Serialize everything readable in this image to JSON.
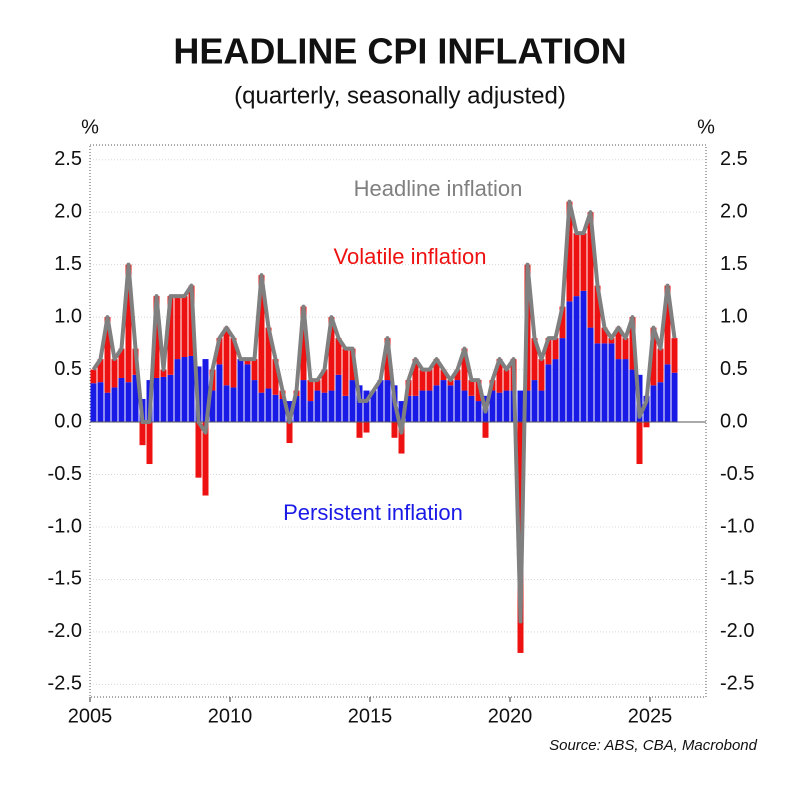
{
  "chart_data": {
    "type": "stacked-bar-line",
    "title": "HEADLINE CPI INFLATION",
    "subtitle": "(quarterly, seasonally adjusted)",
    "ylabel": "%",
    "source": "Source: ABS, CBA, Macrobond",
    "xlim": [
      2005,
      2027
    ],
    "ylim": [
      -2.62,
      2.64
    ],
    "xticks": [
      2005,
      2010,
      2015,
      2020,
      2025
    ],
    "yticks": [
      -2.5,
      {
        "value": -2,
        "label": "-2.0"
      },
      -1.5,
      {
        "value": -1,
        "label": "-1.0"
      },
      -0.5,
      {
        "value": 0,
        "label": "0.0"
      },
      0.5,
      {
        "value": 1,
        "label": "1.0"
      },
      1.5,
      {
        "value": 2,
        "label": "2.0"
      },
      2.5
    ],
    "grid": true,
    "x": [
      2005,
      2005.25,
      2005.5,
      2005.75,
      2006,
      2006.25,
      2006.5,
      2006.75,
      2007,
      2007.25,
      2007.5,
      2007.75,
      2008,
      2008.25,
      2008.5,
      2008.75,
      2009,
      2009.25,
      2009.5,
      2009.75,
      2010,
      2010.25,
      2010.5,
      2010.75,
      2011,
      2011.25,
      2011.5,
      2011.75,
      2012,
      2012.25,
      2012.5,
      2012.75,
      2013,
      2013.25,
      2013.5,
      2013.75,
      2014,
      2014.25,
      2014.5,
      2014.75,
      2015,
      2015.25,
      2015.5,
      2015.75,
      2016,
      2016.25,
      2016.5,
      2016.75,
      2017,
      2017.25,
      2017.5,
      2017.75,
      2018,
      2018.25,
      2018.5,
      2018.75,
      2019,
      2019.25,
      2019.5,
      2019.75,
      2020,
      2020.25,
      2020.5,
      2020.75,
      2021,
      2021.25,
      2021.5,
      2021.75,
      2022,
      2022.25,
      2022.5,
      2022.75,
      2023,
      2023.25,
      2023.5,
      2023.75,
      2024,
      2024.25,
      2024.5,
      2024.75,
      2025,
      2025.25,
      2025.5,
      2025.75
    ],
    "series": [
      {
        "name": "Persistent inflation",
        "color": "#1a1ae6",
        "kind": "bar",
        "values": [
          0.37,
          0.38,
          0.28,
          0.33,
          0.42,
          0.38,
          0.45,
          0.22,
          0.4,
          0.42,
          0.43,
          0.45,
          0.6,
          0.62,
          0.63,
          0.53,
          0.6,
          0.3,
          0.55,
          0.35,
          0.33,
          0.6,
          0.55,
          0.4,
          0.28,
          0.32,
          0.26,
          0.22,
          0.2,
          0.25,
          0.4,
          0.2,
          0.3,
          0.28,
          0.3,
          0.45,
          0.25,
          0.4,
          0.35,
          0.3,
          0.3,
          0.4,
          0.4,
          0.35,
          0.2,
          0.25,
          0.25,
          0.3,
          0.3,
          0.35,
          0.4,
          0.35,
          0.4,
          0.3,
          0.25,
          0.2,
          0.25,
          0.3,
          0.28,
          0.3,
          0.3,
          0.3,
          0.3,
          0.4,
          0.3,
          0.55,
          0.6,
          0.8,
          1.15,
          1.2,
          1.25,
          0.9,
          0.75,
          0.75,
          0.75,
          0.6,
          0.6,
          0.5,
          0.45,
          0.25,
          0.35,
          0.38,
          0.55,
          0.47
        ]
      },
      {
        "name": "Volatile inflation",
        "color": "#ee1111",
        "kind": "bar",
        "values": [
          0.13,
          0.22,
          0.72,
          0.27,
          0.28,
          1.12,
          0.25,
          -0.22,
          -0.4,
          0.78,
          0.07,
          0.75,
          0.6,
          0.58,
          0.67,
          -0.53,
          -0.7,
          0.2,
          0.25,
          0.55,
          0.47,
          0,
          0.05,
          0.2,
          1.12,
          0.58,
          0.34,
          0.08,
          -0.2,
          0.05,
          0.7,
          0.2,
          0.1,
          0.22,
          0.7,
          0.35,
          0.45,
          0.3,
          -0.15,
          -0.1,
          0,
          0,
          0.4,
          -0.15,
          -0.3,
          0.15,
          0.35,
          0.2,
          0.2,
          0.25,
          0.1,
          0.05,
          0.1,
          0.4,
          0.15,
          0.2,
          -0.15,
          0.1,
          0.32,
          0.2,
          0.3,
          -2.2,
          1.2,
          0.4,
          0.3,
          0.25,
          0.2,
          0.3,
          0.95,
          0.6,
          0.55,
          1.1,
          0.55,
          0.15,
          0.05,
          0.3,
          0.2,
          0.5,
          -0.4,
          -0.05,
          0.55,
          0.32,
          0.75,
          0.33
        ]
      },
      {
        "name": "Headline inflation",
        "color": "#808080",
        "kind": "line",
        "values": [
          0.5,
          0.6,
          1,
          0.6,
          0.7,
          1.5,
          0.7,
          0,
          0,
          1.2,
          0.5,
          1.2,
          1.2,
          1.2,
          1.3,
          0,
          -0.1,
          0.5,
          0.8,
          0.9,
          0.8,
          0.6,
          0.6,
          0.6,
          1.4,
          0.9,
          0.6,
          0.3,
          0,
          0.3,
          1.1,
          0.4,
          0.4,
          0.5,
          1,
          0.8,
          0.7,
          0.7,
          0.2,
          0.2,
          0.3,
          0.4,
          0.8,
          0.2,
          -0.1,
          0.4,
          0.6,
          0.5,
          0.5,
          0.6,
          0.5,
          0.4,
          0.5,
          0.7,
          0.4,
          0.4,
          0.1,
          0.4,
          0.6,
          0.5,
          0.6,
          -1.9,
          1.5,
          0.8,
          0.6,
          0.8,
          0.8,
          1.1,
          2.1,
          1.8,
          1.8,
          2,
          1.3,
          0.9,
          0.8,
          0.9,
          0.8,
          1,
          0.05,
          0.2,
          0.9,
          0.7,
          1.3,
          0.8
        ]
      }
    ]
  }
}
